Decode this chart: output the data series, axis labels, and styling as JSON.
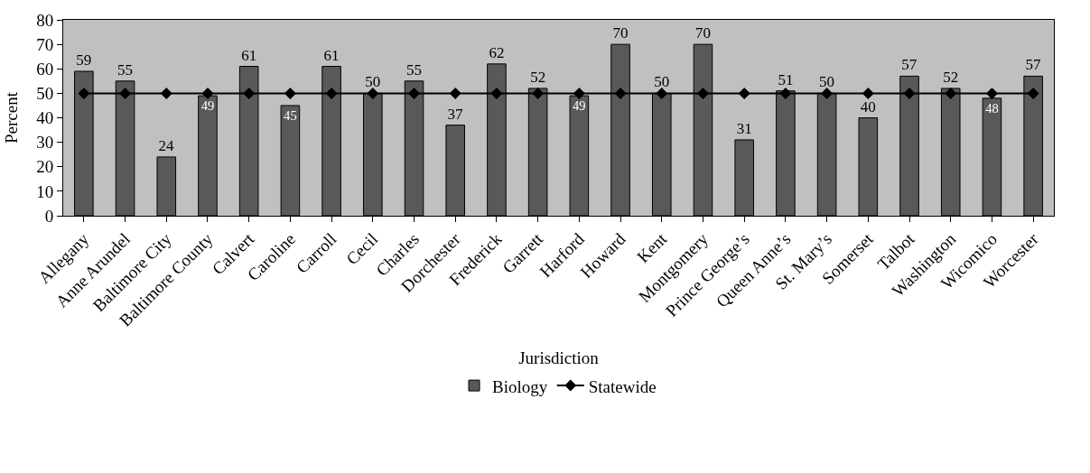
{
  "chart_data": {
    "type": "bar",
    "xlabel": "Jurisdiction",
    "ylabel": "Percent",
    "categories": [
      "Allegany",
      "Anne Arundel",
      "Baltimore City",
      "Baltimore County",
      "Calvert",
      "Caroline",
      "Carroll",
      "Cecil",
      "Charles",
      "Dorchester",
      "Frederick",
      "Garrett",
      "Harford",
      "Howard",
      "Kent",
      "Montgomery",
      "Prince George’s",
      "Queen Anne’s",
      "St. Mary’s",
      "Somerset",
      "Talbot",
      "Washington",
      "Wicomico",
      "Worcester"
    ],
    "series": [
      {
        "name": "Biology",
        "color": "#595959",
        "values": [
          59,
          55,
          24,
          49,
          61,
          45,
          61,
          50,
          55,
          37,
          62,
          52,
          49,
          70,
          50,
          70,
          31,
          51,
          50,
          40,
          57,
          52,
          48,
          57
        ],
        "value_labels": [
          "59",
          "55",
          "24",
          "49",
          "61",
          "45",
          "61",
          "50",
          "55",
          "37",
          "62",
          "52",
          "49",
          "70",
          "50",
          "70",
          "31",
          "51",
          "50",
          "40",
          "57",
          "52",
          "48",
          "57"
        ]
      },
      {
        "name": "Statewide",
        "type": "line",
        "color": "#000000",
        "values": [
          50,
          50,
          50,
          50,
          50,
          50,
          50,
          50,
          50,
          50,
          50,
          50,
          50,
          50,
          50,
          50,
          50,
          50,
          50,
          50,
          50,
          50,
          50,
          50
        ]
      }
    ],
    "ylim": [
      0,
      80
    ],
    "yticks": [
      0,
      10,
      20,
      30,
      40,
      50,
      60,
      70,
      80
    ],
    "marker": "diamond",
    "line_style": "solid",
    "grid": false,
    "legend": "bottom"
  }
}
